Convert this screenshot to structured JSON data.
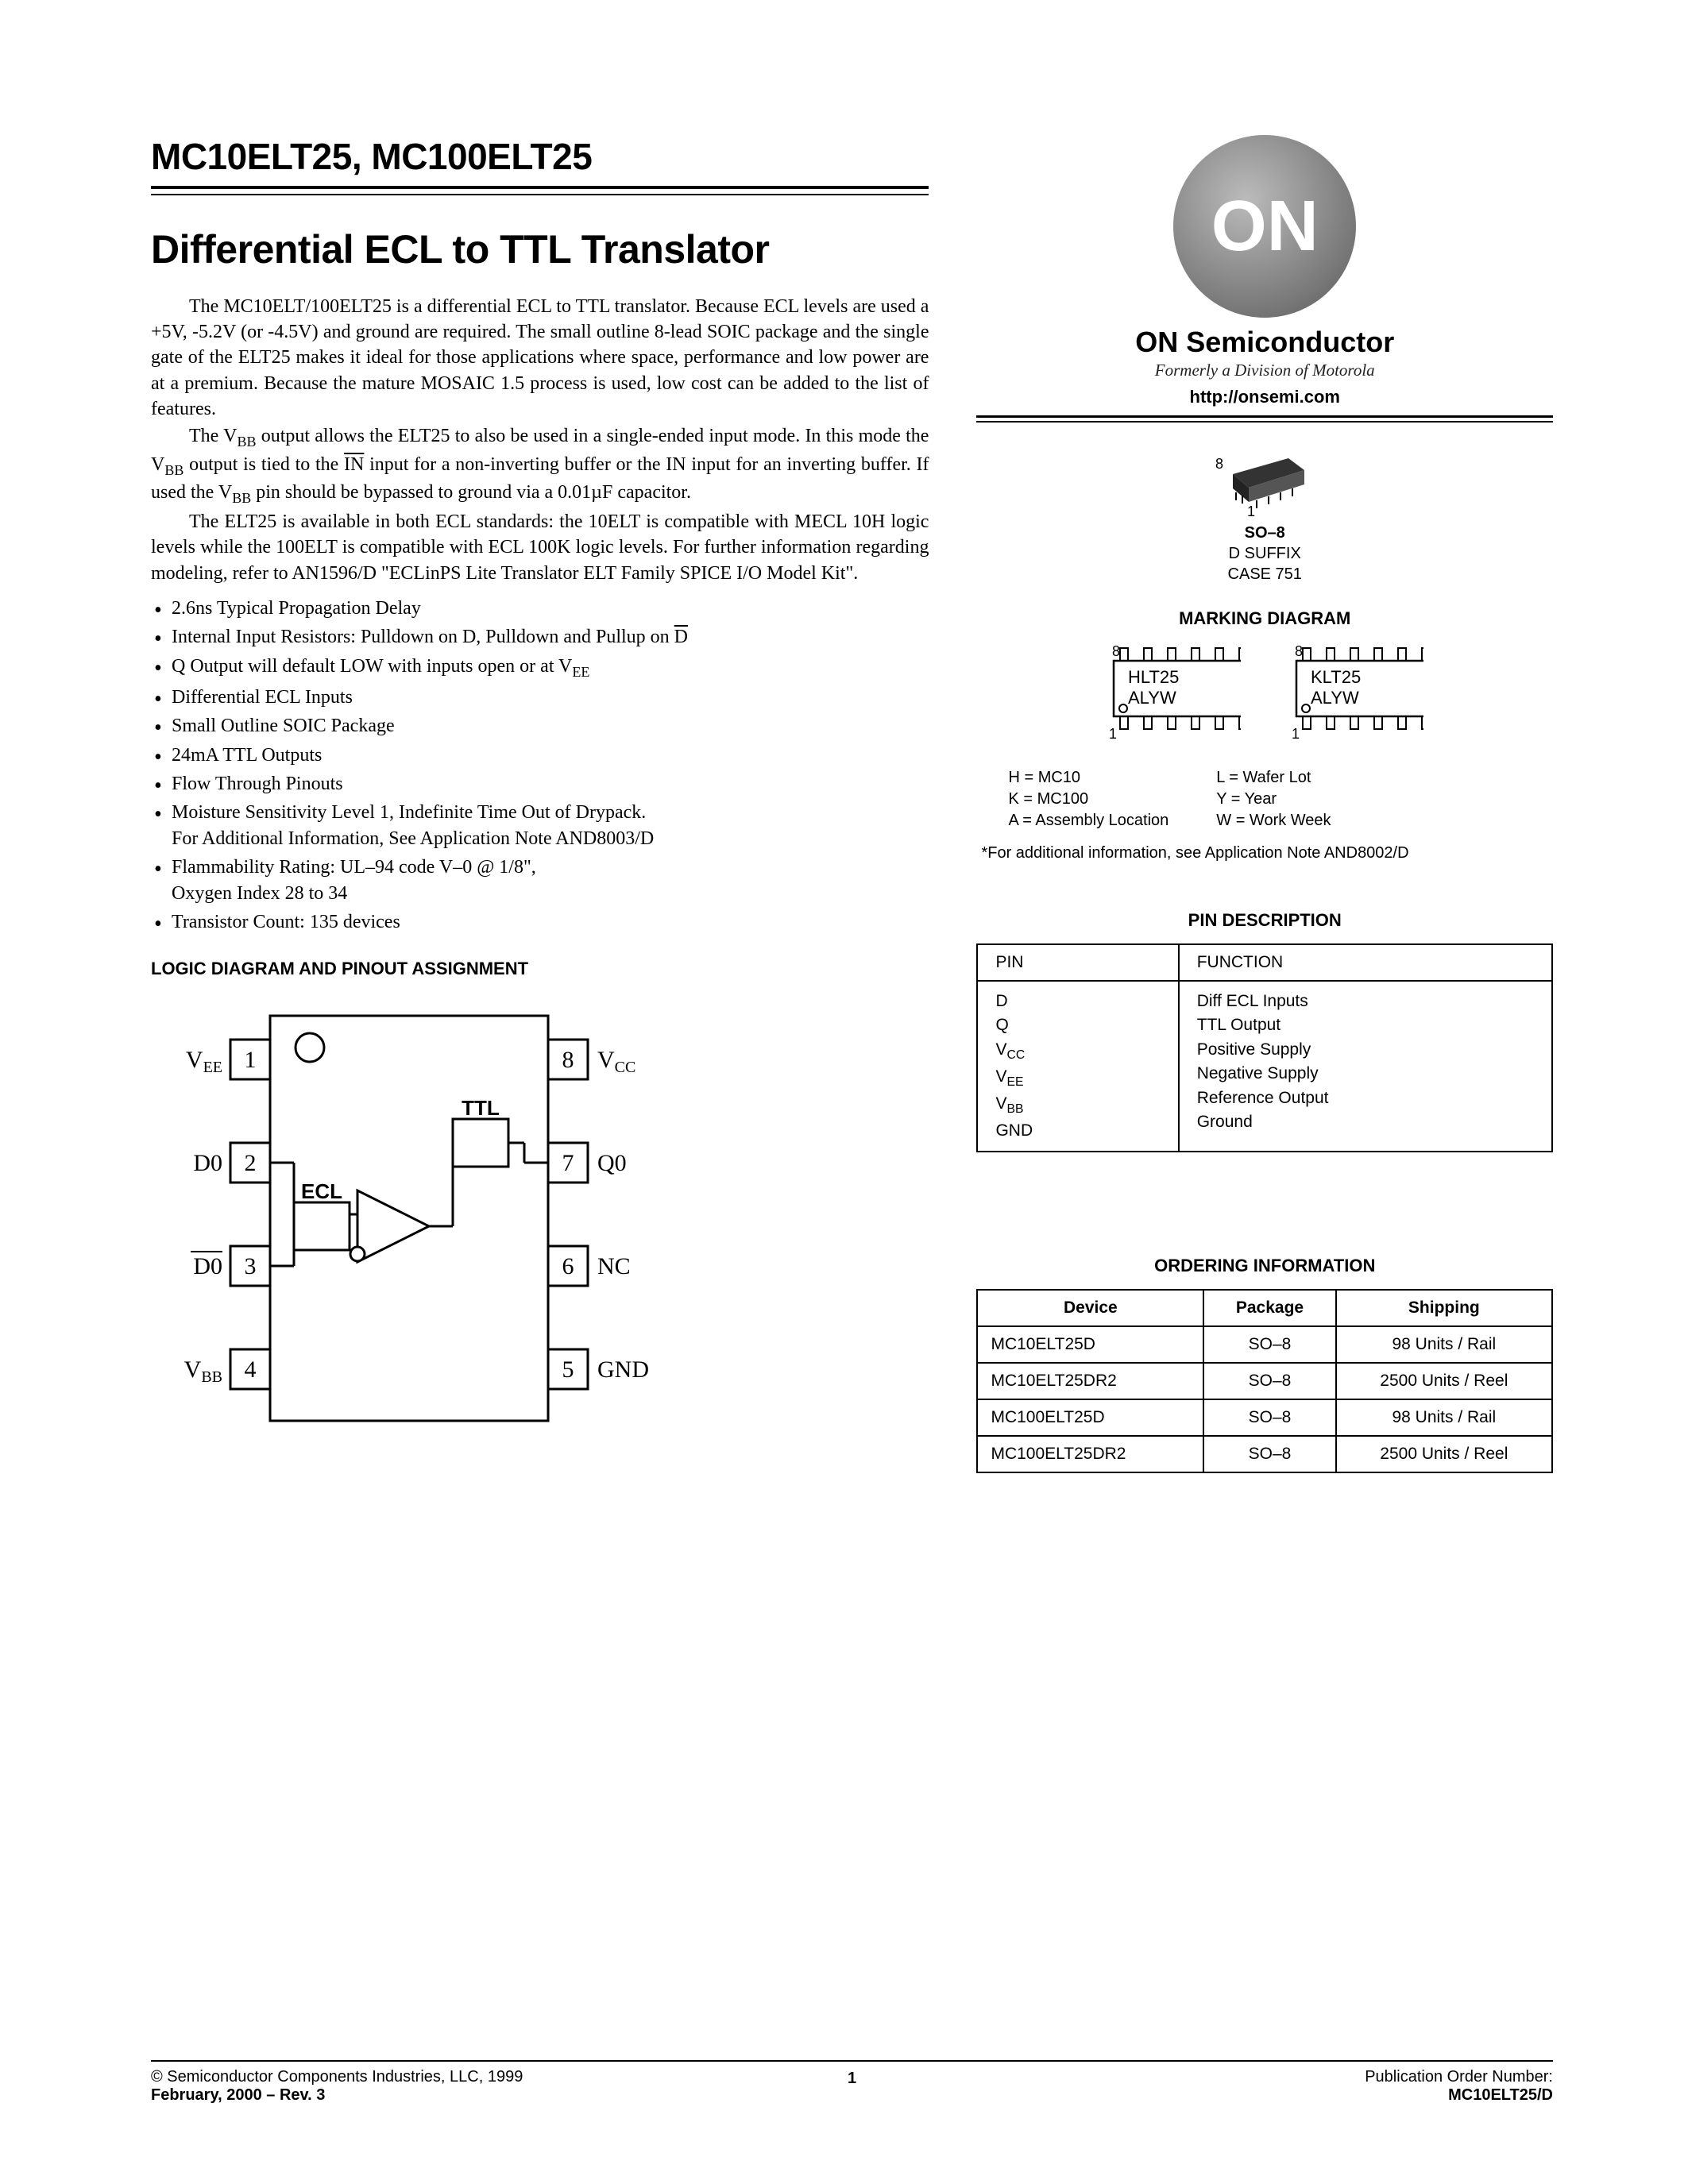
{
  "header": {
    "part_number": "MC10ELT25, MC100ELT25",
    "title": "Differential ECL to TTL Translator"
  },
  "paragraphs": {
    "p1a": "The MC10ELT/100ELT25 is a differential ECL to TTL translator. Because ECL levels are used a +5V, -5.2V (or -4.5V) and ground are required. The small outline 8-lead SOIC package and the single gate of the ELT25 makes it ideal for those applications where space, performance and low power are at a premium. Because the mature MOSAIC 1.5 process is used, low cost can be added to the list of features.",
    "p2a": "The V",
    "p2b": " output allows the ELT25 to also be used in a single-ended input mode. In this mode the V",
    "p2c": " output is tied to the ",
    "p2d": " input for a non-inverting buffer or the IN input for an inverting buffer. If used the V",
    "p2e": " pin should be bypassed to ground via a 0.01µF capacitor.",
    "p3": "The ELT25 is available in both ECL standards: the 10ELT is compatible with MECL 10H logic levels while the 100ELT is compatible with ECL 100K logic levels. For further information regarding modeling, refer to AN1596/D \"ECLinPS Lite Translator ELT Family SPICE I/O Model Kit\".",
    "sub_bb": "BB",
    "in_bar": "IN"
  },
  "features": [
    "2.6ns Typical Propagation Delay",
    "Internal Input Resistors: Pulldown on D, Pulldown and Pullup on D̅",
    "Q Output will default LOW with inputs open or at VEE",
    "Differential ECL Inputs",
    "Small Outline SOIC Package",
    "24mA TTL Outputs",
    "Flow Through Pinouts",
    "Moisture Sensitivity Level 1, Indefinite Time Out of Drypack.\nFor Additional Information, See Application Note AND8003/D",
    "Flammability Rating: UL–94 code V–0 @ 1/8\",\nOxygen Index 28 to 34",
    "Transistor Count: 135 devices"
  ],
  "logic_diagram": {
    "heading": "LOGIC DIAGRAM AND PINOUT ASSIGNMENT",
    "left_pins": [
      {
        "num": "1",
        "label": "VEE",
        "sub": "EE"
      },
      {
        "num": "2",
        "label": "D0"
      },
      {
        "num": "3",
        "label": "D0",
        "overline": true
      },
      {
        "num": "4",
        "label": "VBB",
        "sub": "BB"
      }
    ],
    "right_pins": [
      {
        "num": "8",
        "label": "VCC",
        "sub": "CC"
      },
      {
        "num": "7",
        "label": "Q0"
      },
      {
        "num": "6",
        "label": "NC"
      },
      {
        "num": "5",
        "label": "GND"
      }
    ],
    "ecl_label": "ECL",
    "ttl_label": "TTL"
  },
  "brand": {
    "logo_text": "ON",
    "name": "ON Semiconductor",
    "tagline": "Formerly a Division of Motorola",
    "url": "http://onsemi.com"
  },
  "package": {
    "pin8": "8",
    "pin1": "1",
    "line1": "SO–8",
    "line2": "D SUFFIX",
    "line3": "CASE 751"
  },
  "marking": {
    "heading": "MARKING DIAGRAM",
    "chip1_l1": "HLT25",
    "chip1_l2": "ALYW",
    "chip2_l1": "KLT25",
    "chip2_l2": "ALYW",
    "pin8": "8",
    "pin1": "1",
    "legend_left": [
      "H   = MC10",
      "K   = MC100",
      "A   = Assembly Location"
    ],
    "legend_right": [
      "L   = Wafer Lot",
      "Y   = Year",
      "W  = Work Week"
    ],
    "footnote": "*For additional information, see Application Note AND8002/D"
  },
  "pin_desc": {
    "heading": "PIN DESCRIPTION",
    "col_pin": "PIN",
    "col_func": "FUNCTION",
    "rows": [
      {
        "pin": "D",
        "func": "Diff ECL Inputs"
      },
      {
        "pin": "Q",
        "func": "TTL Output"
      },
      {
        "pin": "VCC",
        "sub": "CC",
        "func": "Positive Supply"
      },
      {
        "pin": "VEE",
        "sub": "EE",
        "func": "Negative Supply"
      },
      {
        "pin": "VBB",
        "sub": "BB",
        "func": "Reference Output"
      },
      {
        "pin": "GND",
        "func": "Ground"
      }
    ]
  },
  "ordering": {
    "heading": "ORDERING INFORMATION",
    "cols": [
      "Device",
      "Package",
      "Shipping"
    ],
    "rows": [
      [
        "MC10ELT25D",
        "SO–8",
        "98 Units / Rail"
      ],
      [
        "MC10ELT25DR2",
        "SO–8",
        "2500 Units / Reel"
      ],
      [
        "MC100ELT25D",
        "SO–8",
        "98 Units / Rail"
      ],
      [
        "MC100ELT25DR2",
        "SO–8",
        "2500 Units / Reel"
      ]
    ]
  },
  "footer": {
    "copyright": "©  Semiconductor Components Industries, LLC, 1999",
    "date_rev": "February, 2000 – Rev. 3",
    "page_num": "1",
    "pub_label": "Publication Order Number:",
    "pub_num": "MC10ELT25/D"
  }
}
